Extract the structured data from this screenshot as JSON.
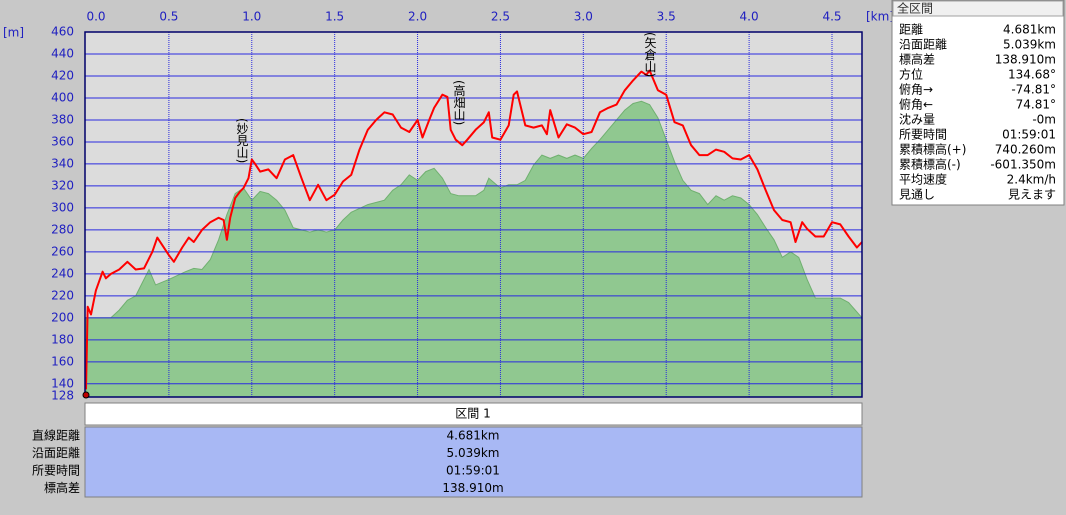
{
  "chart_data": {
    "type": "area-line",
    "y_label": "[m]",
    "x_label": "[km]",
    "xlim": [
      0,
      4.681
    ],
    "xticks": [
      {
        "value": 0,
        "label": "0.0"
      },
      0.5,
      {
        "value": 1,
        "label": "1.0"
      },
      1.5,
      {
        "value": 2,
        "label": "2.0"
      },
      2.5,
      {
        "value": 3,
        "label": "3.0"
      },
      3.5,
      {
        "value": 4,
        "label": "4.0"
      },
      4.5
    ],
    "ylim": [
      128,
      460
    ],
    "yticks": [
      128,
      140,
      160,
      180,
      200,
      220,
      240,
      260,
      280,
      300,
      320,
      340,
      360,
      380,
      400,
      420,
      440,
      460
    ],
    "grid": true,
    "annotations": [
      "(妙見山)",
      "(高畑山)",
      "(矢倉山)"
    ],
    "series": [
      {
        "kind": "area",
        "color": "#90c890",
        "x": [
          0,
          0.15,
          0.2,
          0.25,
          0.3,
          0.35,
          0.38,
          0.42,
          0.5,
          0.6,
          0.65,
          0.7,
          0.75,
          0.8,
          0.85,
          0.9,
          0.95,
          1.0,
          1.05,
          1.1,
          1.15,
          1.2,
          1.25,
          1.3,
          1.35,
          1.4,
          1.45,
          1.5,
          1.55,
          1.6,
          1.7,
          1.8,
          1.85,
          1.9,
          1.95,
          2.0,
          2.05,
          2.1,
          2.15,
          2.2,
          2.25,
          2.3,
          2.35,
          2.4,
          2.43,
          2.5,
          2.55,
          2.6,
          2.65,
          2.7,
          2.75,
          2.8,
          2.85,
          2.9,
          2.95,
          3.0,
          3.05,
          3.1,
          3.15,
          3.2,
          3.25,
          3.3,
          3.35,
          3.4,
          3.45,
          3.5,
          3.55,
          3.6,
          3.65,
          3.7,
          3.75,
          3.8,
          3.85,
          3.9,
          3.95,
          4.0,
          4.05,
          4.1,
          4.15,
          4.2,
          4.25,
          4.3,
          4.35,
          4.4,
          4.5,
          4.55,
          4.6,
          4.681
        ],
        "values": [
          200,
          200,
          207,
          216,
          220,
          235,
          244,
          230,
          235,
          242,
          245,
          244,
          253,
          271,
          294,
          313,
          318,
          307,
          315,
          313,
          307,
          298,
          282,
          280,
          278,
          280,
          278,
          280,
          289,
          296,
          303,
          307,
          316,
          321,
          330,
          325,
          333,
          336,
          327,
          313,
          311,
          311,
          311,
          316,
          327,
          318,
          321,
          321,
          325,
          339,
          348,
          345,
          348,
          345,
          348,
          345,
          354,
          362,
          371,
          380,
          389,
          395,
          397,
          394,
          382,
          362,
          342,
          325,
          316,
          313,
          303,
          311,
          307,
          311,
          309,
          303,
          294,
          282,
          271,
          255,
          260,
          255,
          235,
          218,
          218,
          218,
          214,
          200
        ]
      },
      {
        "kind": "line",
        "color": "#ff0000",
        "x": [
          0,
          0.01,
          0.03,
          0.06,
          0.1,
          0.12,
          0.15,
          0.2,
          0.25,
          0.3,
          0.35,
          0.4,
          0.43,
          0.5,
          0.53,
          0.58,
          0.62,
          0.65,
          0.7,
          0.75,
          0.8,
          0.83,
          0.85,
          0.87,
          0.9,
          0.93,
          0.95,
          0.98,
          1.0,
          1.02,
          1.05,
          1.1,
          1.15,
          1.2,
          1.25,
          1.3,
          1.35,
          1.4,
          1.45,
          1.5,
          1.55,
          1.6,
          1.65,
          1.7,
          1.75,
          1.8,
          1.85,
          1.9,
          1.95,
          2.0,
          2.03,
          2.07,
          2.1,
          2.15,
          2.18,
          2.2,
          2.23,
          2.27,
          2.3,
          2.35,
          2.4,
          2.43,
          2.45,
          2.5,
          2.55,
          2.58,
          2.6,
          2.65,
          2.7,
          2.75,
          2.78,
          2.8,
          2.85,
          2.9,
          2.95,
          3.0,
          3.05,
          3.1,
          3.15,
          3.2,
          3.25,
          3.3,
          3.35,
          3.38,
          3.4,
          3.45,
          3.5,
          3.55,
          3.6,
          3.65,
          3.7,
          3.75,
          3.8,
          3.85,
          3.9,
          3.95,
          4.0,
          4.05,
          4.1,
          4.15,
          4.2,
          4.25,
          4.28,
          4.32,
          4.35,
          4.4,
          4.45,
          4.5,
          4.55,
          4.6,
          4.65,
          4.681
        ],
        "values": [
          135,
          210,
          203,
          225,
          242,
          236,
          240,
          244,
          251,
          244,
          245,
          260,
          273,
          257,
          251,
          264,
          273,
          269,
          280,
          287,
          291,
          289,
          271,
          291,
          309,
          315,
          318,
          327,
          344,
          340,
          333,
          335,
          327,
          344,
          348,
          327,
          307,
          321,
          307,
          312,
          324,
          330,
          353,
          371,
          380,
          387,
          385,
          373,
          369,
          380,
          364,
          380,
          391,
          403,
          401,
          371,
          362,
          357,
          362,
          371,
          378,
          387,
          364,
          362,
          375,
          403,
          406,
          375,
          373,
          375,
          367,
          389,
          364,
          376,
          373,
          367,
          369,
          387,
          391,
          394,
          407,
          416,
          424,
          421,
          425,
          407,
          403,
          378,
          375,
          357,
          348,
          348,
          353,
          351,
          345,
          344,
          348,
          335,
          316,
          298,
          289,
          287,
          269,
          287,
          281,
          274,
          274,
          287,
          285,
          274,
          264,
          269
        ]
      }
    ]
  },
  "panel": {
    "title": "全区間",
    "rows": [
      [
        "距離",
        "4.681km"
      ],
      [
        "沿面距離",
        "5.039km"
      ],
      [
        "標高差",
        "138.910m"
      ],
      [
        "方位",
        "134.68°"
      ],
      [
        "俯角→",
        "-74.81°"
      ],
      [
        "俯角←",
        "74.81°"
      ],
      [
        "沈み量",
        "-0m"
      ],
      [
        "所要時間",
        "01:59:01"
      ],
      [
        "累積標高(+)",
        "740.260m"
      ],
      [
        "累積標高(-)",
        "-601.350m"
      ],
      [
        "平均速度",
        "2.4km/h"
      ],
      [
        "見通し",
        "見えます"
      ]
    ]
  },
  "section": {
    "header": "区間 1",
    "rows": [
      [
        "直線距離",
        "4.681km"
      ],
      [
        "沿面距離",
        "5.039km"
      ],
      [
        "所要時間",
        "01:59:01"
      ],
      [
        "標高差",
        "138.910m"
      ]
    ]
  }
}
